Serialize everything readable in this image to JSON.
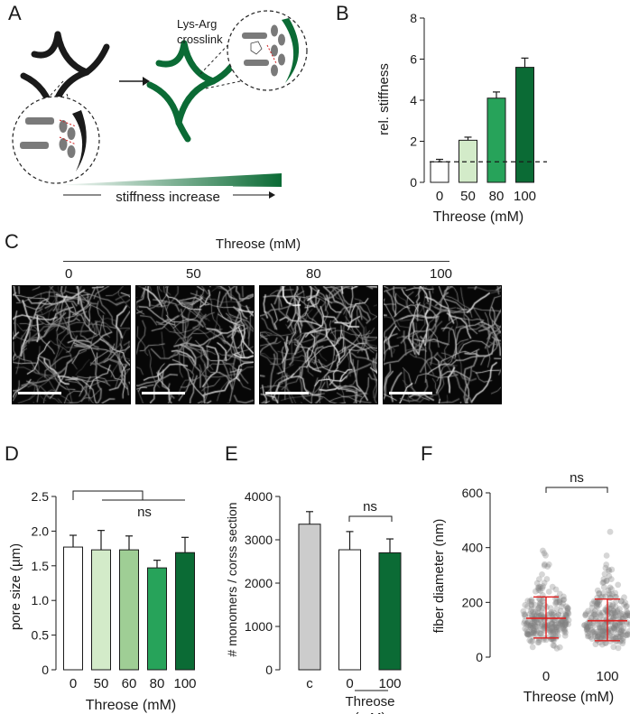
{
  "panels": {
    "A": "A",
    "B": "B",
    "C": "C",
    "D": "D",
    "E": "E",
    "F": "F"
  },
  "panel_a": {
    "crosslink_line1": "Lys-Arg",
    "crosslink_line2": "crosslink",
    "stiffness_label": "stiffness increase",
    "colors": {
      "network_before": "#1a1a1a",
      "network_after": "#0b6b35",
      "rod": "#7a7a7a",
      "crosslink": "#d12020"
    }
  },
  "panel_c": {
    "header": "Threose (mM)",
    "labels": [
      "0",
      "50",
      "80",
      "100"
    ]
  },
  "chart_data": [
    {
      "id": "B",
      "type": "bar",
      "categories": [
        "0",
        "50",
        "80",
        "100"
      ],
      "values": [
        1.0,
        2.05,
        4.1,
        5.6
      ],
      "errors": [
        0.12,
        0.15,
        0.3,
        0.45
      ],
      "colors": [
        "#ffffff",
        "#d3ebc9",
        "#27a35a",
        "#0b6b35"
      ],
      "ylabel": "rel. stiffness",
      "xlabel": "Threose (mM)",
      "ylim": [
        0,
        8
      ],
      "yticks": [
        "0",
        "2",
        "4",
        "6",
        "8"
      ],
      "reference_line": 1.0
    },
    {
      "id": "D",
      "type": "bar",
      "categories": [
        "0",
        "50",
        "60",
        "80",
        "100"
      ],
      "values": [
        1.77,
        1.73,
        1.73,
        1.47,
        1.69
      ],
      "errors": [
        0.17,
        0.28,
        0.2,
        0.11,
        0.22
      ],
      "colors": [
        "#ffffff",
        "#d3ebc9",
        "#9fce95",
        "#27a35a",
        "#0b6b35"
      ],
      "ylabel": "pore size (µm)",
      "xlabel": "Threose (mM)",
      "ylim": [
        0,
        2.5
      ],
      "yticks": [
        "0",
        "0.5",
        "1.0",
        "1.5",
        "2.0",
        "2.5"
      ],
      "annotation": "ns"
    },
    {
      "id": "E",
      "type": "bar",
      "categories": [
        "c",
        "0",
        "100"
      ],
      "values": [
        3360,
        2770,
        2700
      ],
      "errors": [
        290,
        420,
        320
      ],
      "colors": [
        "#cccccc",
        "#ffffff",
        "#0b6b35"
      ],
      "ylabel": "# monomers / corss section",
      "xlabel_line1": "Threose",
      "xlabel_line2": "(mM)",
      "ylim": [
        0,
        4000
      ],
      "yticks": [
        "0",
        "1000",
        "2000",
        "3000",
        "4000"
      ],
      "annotation": "ns"
    },
    {
      "id": "F",
      "type": "scatter",
      "categories": [
        "0",
        "100"
      ],
      "mean": [
        142,
        133
      ],
      "sd_low": [
        70,
        60
      ],
      "sd_high": [
        220,
        212
      ],
      "ylabel": "fiber diameter (nm)",
      "xlabel": "Threose (mM)",
      "ylim": [
        0,
        600
      ],
      "yticks": [
        "0",
        "200",
        "400",
        "600"
      ],
      "annotation": "ns",
      "colors": {
        "points": "#7f7f7f",
        "error": "#e02020"
      }
    }
  ]
}
